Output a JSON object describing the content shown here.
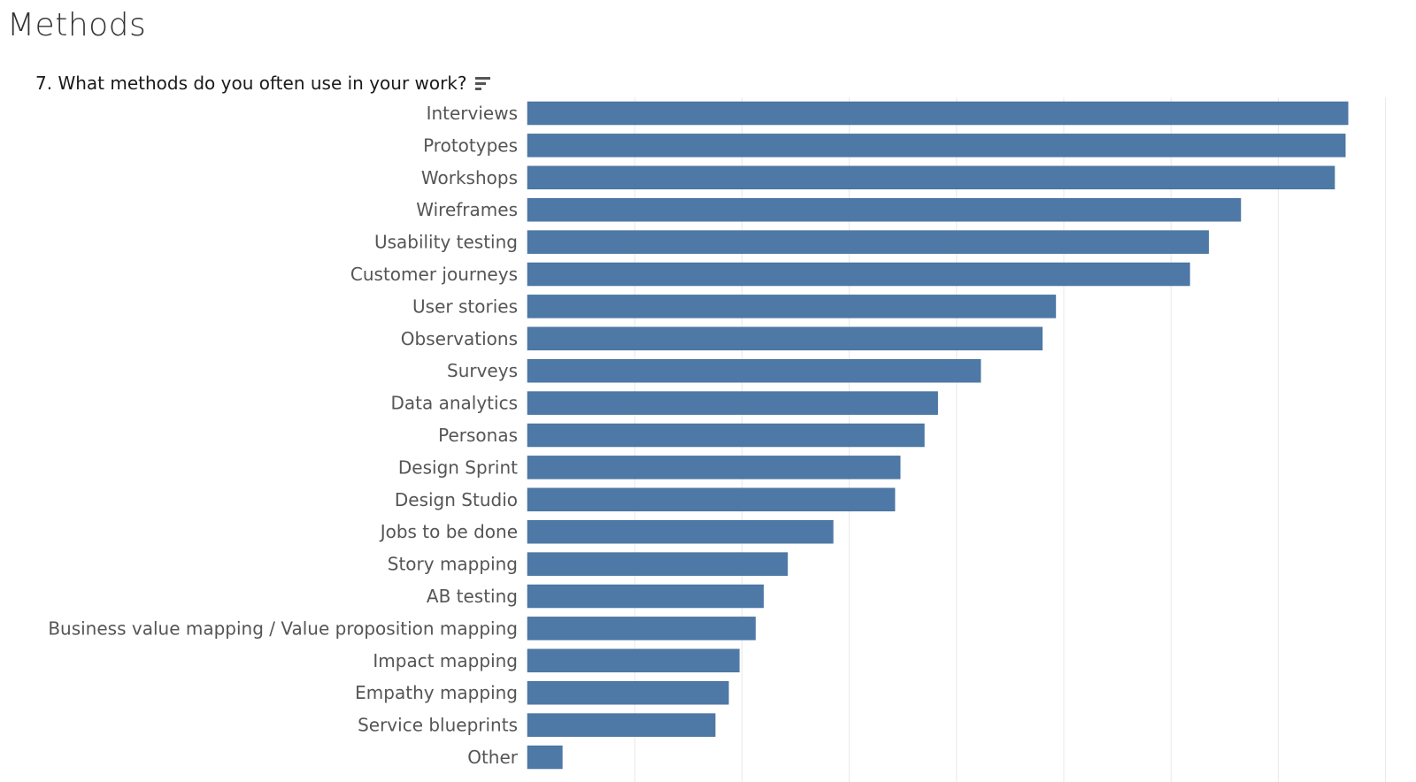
{
  "page": {
    "title": "Methods",
    "question": "7. What methods do you often use in your work?",
    "sort_icon": "sort-descending-icon"
  },
  "colors": {
    "bar": "#4e79a7",
    "grid": "#e8e8e8",
    "label": "#555555"
  },
  "chart_data": {
    "type": "bar",
    "orientation": "horizontal",
    "title": "7. What methods do you often use in your work?",
    "xlabel": "",
    "ylabel": "",
    "grid": true,
    "x_axis_visible": false,
    "categories": [
      "Interviews",
      "Prototypes",
      "Workshops",
      "Wireframes",
      "Usability testing",
      "Customer journeys",
      "User stories",
      "Observations",
      "Surveys",
      "Data analytics",
      "Personas",
      "Design Sprint",
      "Design Studio",
      "Jobs to be done",
      "Story mapping",
      "AB testing",
      "Business value mapping / Value proposition mapping",
      "Impact mapping",
      "Empathy mapping",
      "Service blueprints",
      "Other"
    ],
    "values": [
      153,
      152.5,
      150.5,
      133,
      127,
      123.5,
      98.5,
      96,
      84.5,
      76.5,
      74,
      69.5,
      68.5,
      57,
      48.5,
      44,
      42.5,
      39.5,
      37.5,
      35,
      6.5
    ],
    "xlim": [
      0,
      160
    ],
    "gridlines_at": [
      20,
      40,
      60,
      80,
      100,
      120,
      140,
      160
    ]
  }
}
